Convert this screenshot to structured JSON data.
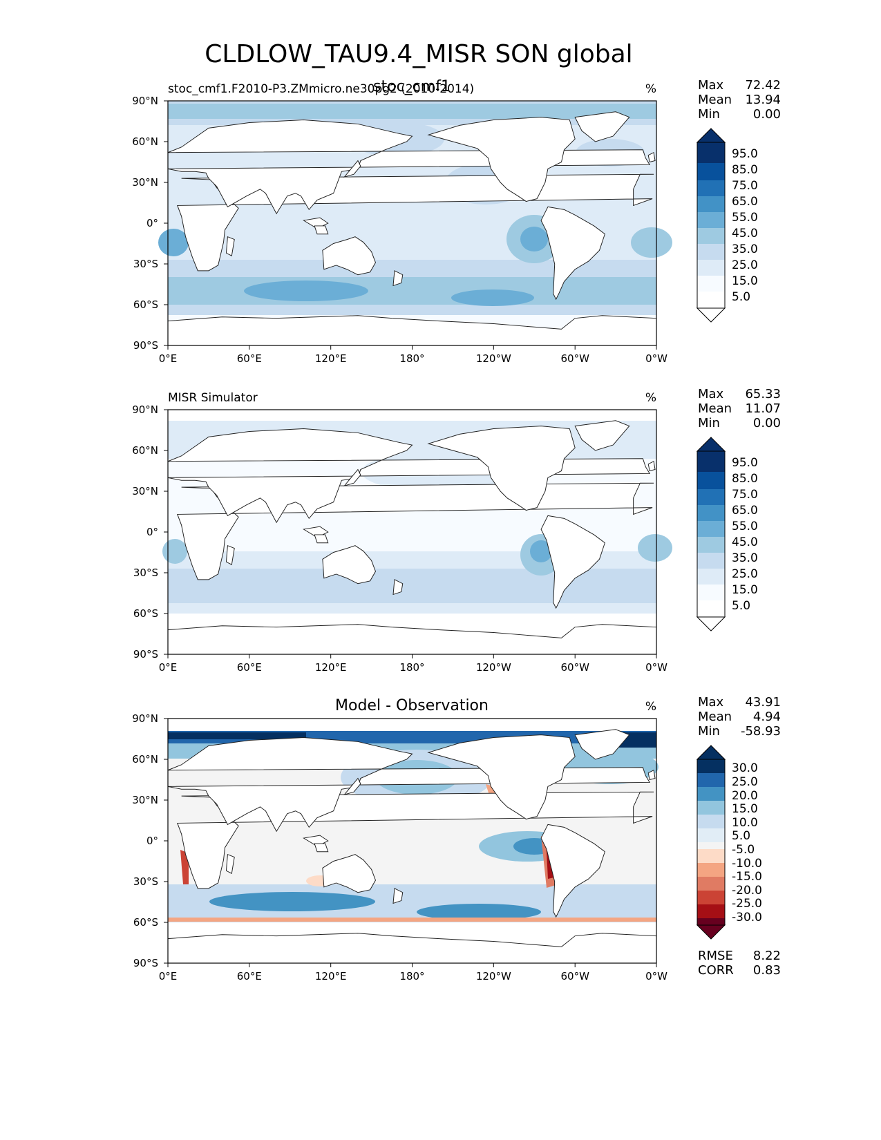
{
  "figure_title": "CLDLOW_TAU9.4_MISR SON global",
  "colors": {
    "blues": [
      "#f7fbff",
      "#deebf7",
      "#c6dbef",
      "#9ecae1",
      "#6baed6",
      "#4292c6",
      "#2171b5",
      "#08519c",
      "#08306b"
    ],
    "diff": [
      "#67001f",
      "#a50f15",
      "#cb4335",
      "#e07b63",
      "#f4a582",
      "#fddbc7",
      "#f4f4f4",
      "#e1edf6",
      "#c6dbef",
      "#92c5de",
      "#4393c3",
      "#2166ac",
      "#053061"
    ],
    "land": "#ffffff",
    "coast": "#222222"
  },
  "chart_data": [
    {
      "type": "heatmap",
      "left_title": "stoc_cmf1.F2010-P3.ZMmicro.ne30pg2 (2010-2014)",
      "center_title": "stoc_cmf1",
      "units": "%",
      "x_ticks": [
        "0°E",
        "60°E",
        "120°E",
        "180°",
        "120°W",
        "60°W",
        "0°W"
      ],
      "y_ticks": [
        "90°N",
        "60°N",
        "30°N",
        "0°",
        "30°S",
        "60°S",
        "90°S"
      ],
      "xlim": [
        0,
        360
      ],
      "ylim": [
        -90,
        90
      ],
      "stats": [
        {
          "label": "Max",
          "value": "72.42"
        },
        {
          "label": "Mean",
          "value": "13.94"
        },
        {
          "label": "Min",
          "value": "0.00"
        }
      ],
      "colorbar_labels": [
        "95.0",
        "85.0",
        "75.0",
        "65.0",
        "55.0",
        "45.0",
        "35.0",
        "25.0",
        "15.0",
        "5.0"
      ]
    },
    {
      "type": "heatmap",
      "left_title": "MISR Simulator",
      "center_title": "",
      "units": "%",
      "x_ticks": [
        "0°E",
        "60°E",
        "120°E",
        "180°",
        "120°W",
        "60°W",
        "0°W"
      ],
      "y_ticks": [
        "90°N",
        "60°N",
        "30°N",
        "0°",
        "30°S",
        "60°S",
        "90°S"
      ],
      "xlim": [
        0,
        360
      ],
      "ylim": [
        -90,
        90
      ],
      "stats": [
        {
          "label": "Max",
          "value": "65.33"
        },
        {
          "label": "Mean",
          "value": "11.07"
        },
        {
          "label": "Min",
          "value": "0.00"
        }
      ],
      "colorbar_labels": [
        "95.0",
        "85.0",
        "75.0",
        "65.0",
        "55.0",
        "45.0",
        "35.0",
        "25.0",
        "15.0",
        "5.0"
      ]
    },
    {
      "type": "heatmap",
      "left_title": "",
      "center_title": "Model - Observation",
      "units": "%",
      "x_ticks": [
        "0°E",
        "60°E",
        "120°E",
        "180°",
        "120°W",
        "60°W",
        "0°W"
      ],
      "y_ticks": [
        "90°N",
        "60°N",
        "30°N",
        "0°",
        "30°S",
        "60°S",
        "90°S"
      ],
      "xlim": [
        0,
        360
      ],
      "ylim": [
        -90,
        90
      ],
      "stats": [
        {
          "label": "Max",
          "value": "43.91"
        },
        {
          "label": "Mean",
          "value": "4.94"
        },
        {
          "label": "Min",
          "value": "-58.93"
        }
      ],
      "colorbar_labels": [
        "30.0",
        "25.0",
        "20.0",
        "15.0",
        "10.0",
        "5.0",
        "-5.0",
        "-10.0",
        "-15.0",
        "-20.0",
        "-25.0",
        "-30.0"
      ],
      "metrics": [
        {
          "label": "RMSE",
          "value": "8.22"
        },
        {
          "label": "CORR",
          "value": "0.83"
        }
      ]
    }
  ]
}
